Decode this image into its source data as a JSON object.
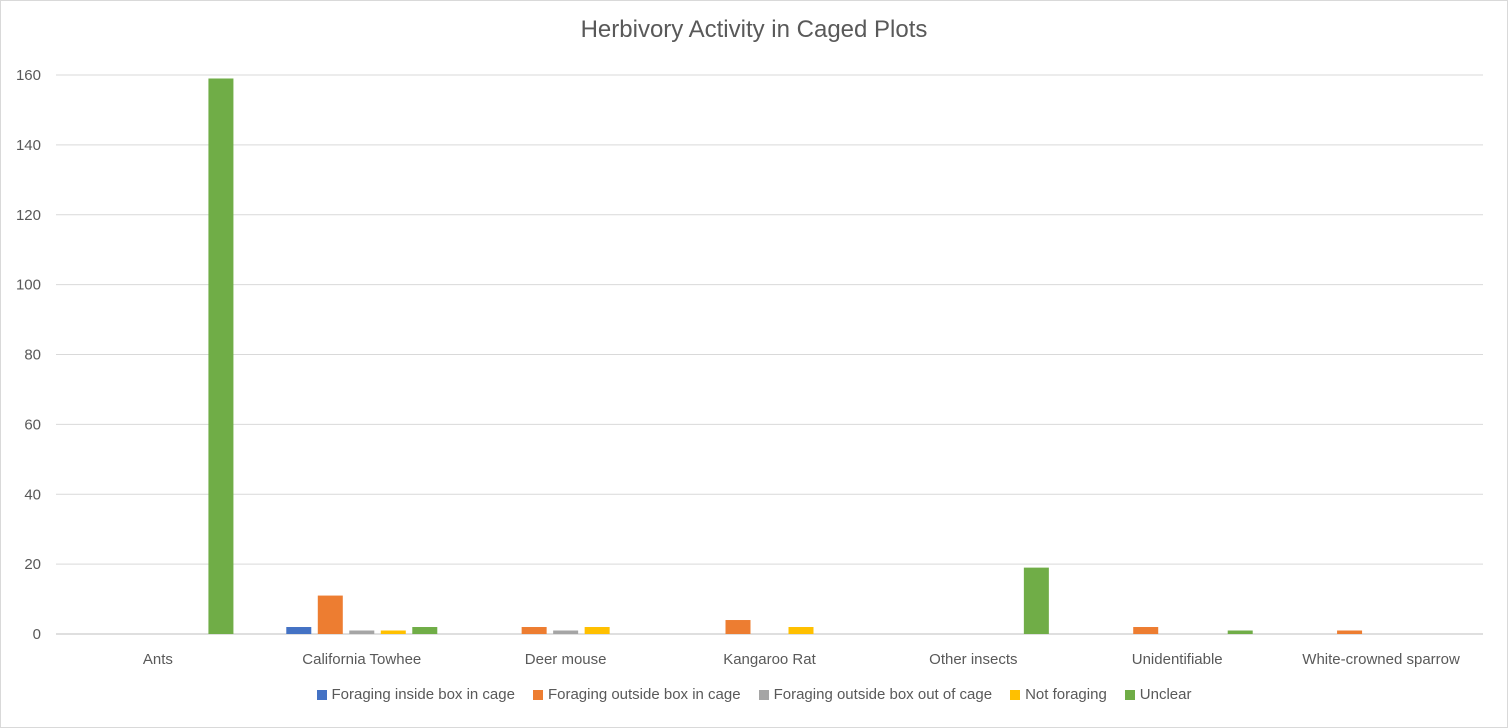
{
  "chart_data": {
    "type": "bar",
    "title": "Herbivory Activity in Caged Plots",
    "xlabel": "",
    "ylabel": "",
    "ylim": [
      0,
      160
    ],
    "yticks": [
      0,
      20,
      40,
      60,
      80,
      100,
      120,
      140,
      160
    ],
    "grid": true,
    "legend_position": "bottom",
    "categories": [
      "Ants",
      "California Towhee",
      "Deer mouse",
      "Kangaroo Rat",
      "Other insects",
      "Unidentifiable",
      "White-crowned sparrow"
    ],
    "series": [
      {
        "name": "Foraging inside box in cage",
        "color": "#4472c4",
        "values": [
          0,
          2,
          0,
          0,
          0,
          0,
          0
        ]
      },
      {
        "name": "Foraging outside box in cage",
        "color": "#ed7d31",
        "values": [
          0,
          11,
          2,
          4,
          0,
          2,
          1
        ]
      },
      {
        "name": "Foraging outside box out of cage",
        "color": "#a5a5a5",
        "values": [
          0,
          1,
          1,
          0,
          0,
          0,
          0
        ]
      },
      {
        "name": "Not foraging",
        "color": "#ffc000",
        "values": [
          0,
          1,
          2,
          2,
          0,
          0,
          0
        ]
      },
      {
        "name": "Unclear",
        "color": "#70ad47",
        "values": [
          159,
          2,
          0,
          0,
          19,
          1,
          0
        ]
      }
    ]
  }
}
